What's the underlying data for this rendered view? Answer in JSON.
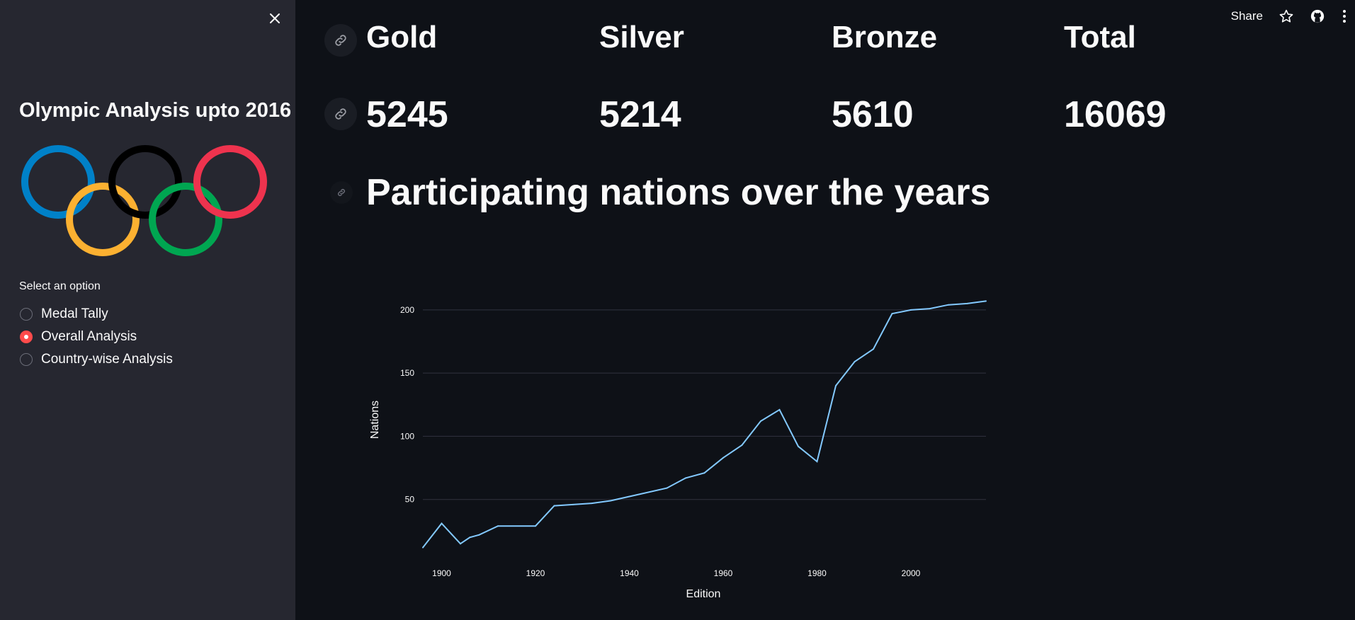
{
  "sidebar": {
    "title": "Olympic Analysis upto 2016",
    "radio_label": "Select an option",
    "options": [
      {
        "label": "Medal Tally",
        "selected": false
      },
      {
        "label": "Overall Analysis",
        "selected": true
      },
      {
        "label": "Country-wise Analysis",
        "selected": false
      }
    ],
    "logo_colors": {
      "blue": "#0081c8",
      "yellow": "#fcb131",
      "black": "#000000",
      "green": "#00a651",
      "red": "#ee334e"
    }
  },
  "toolbar": {
    "share_label": "Share"
  },
  "metrics": {
    "headers": [
      "Gold",
      "Silver",
      "Bronze",
      "Total"
    ],
    "values": [
      "5245",
      "5214",
      "5610",
      "16069"
    ]
  },
  "section": {
    "title": "Participating nations over the years"
  },
  "theme": {
    "accent": "#ff4b4b",
    "line": "#83c9ff",
    "background": "#0e1117",
    "sidebar": "#262730"
  },
  "chart_data": {
    "type": "line",
    "xlabel": "Edition",
    "ylabel": "Nations",
    "xlim": [
      1896,
      2016
    ],
    "ylim": [
      0,
      210
    ],
    "xticks": [
      1900,
      1920,
      1940,
      1960,
      1980,
      2000
    ],
    "yticks": [
      50,
      100,
      150,
      200
    ],
    "grid": true,
    "x": [
      1896,
      1900,
      1904,
      1906,
      1908,
      1912,
      1920,
      1924,
      1928,
      1932,
      1936,
      1948,
      1952,
      1956,
      1960,
      1964,
      1968,
      1972,
      1976,
      1980,
      1984,
      1988,
      1992,
      1996,
      2000,
      2004,
      2008,
      2012,
      2016
    ],
    "values": [
      12,
      31,
      15,
      20,
      22,
      29,
      29,
      45,
      46,
      47,
      49,
      59,
      67,
      71,
      83,
      93,
      112,
      121,
      92,
      80,
      140,
      159,
      169,
      197,
      200,
      201,
      204,
      205,
      207
    ]
  }
}
